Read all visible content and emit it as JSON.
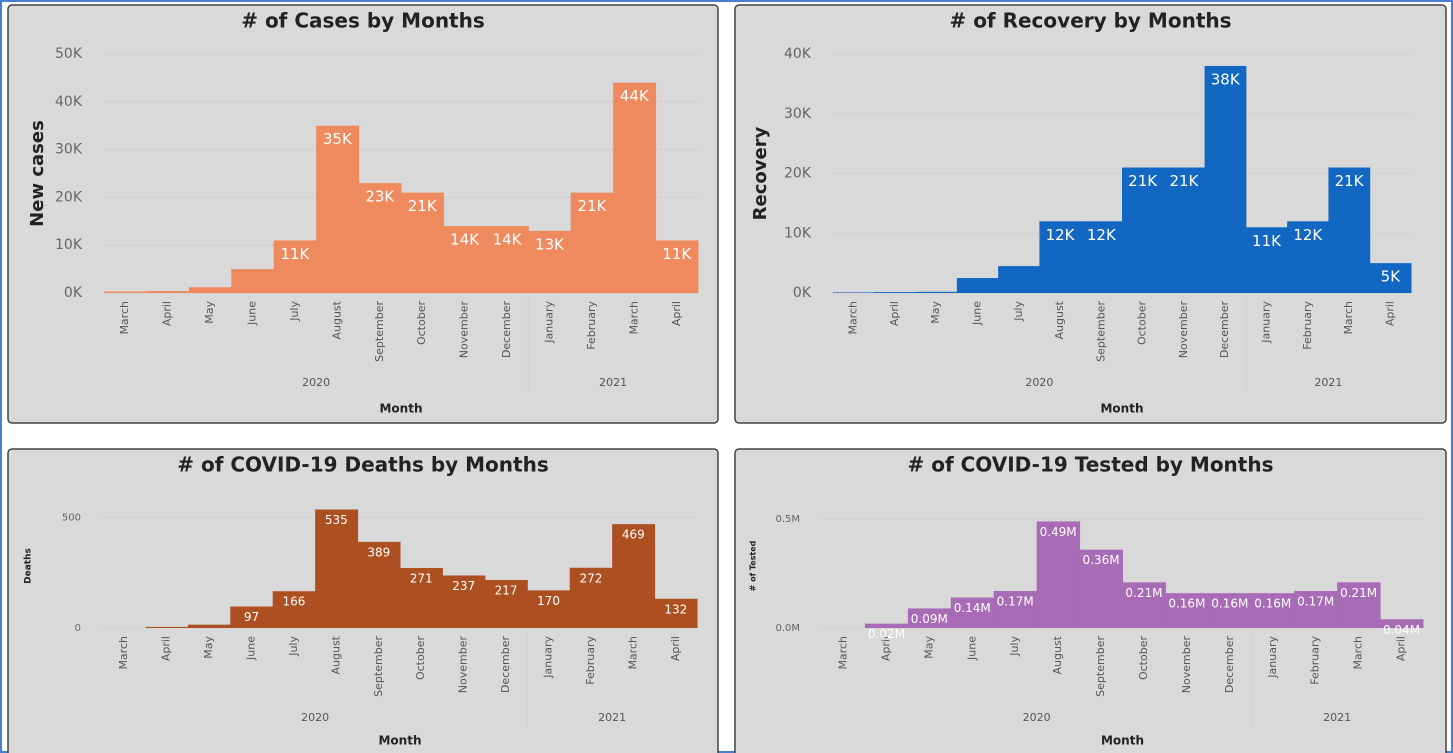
{
  "chart_data": [
    {
      "type": "bar",
      "title": "# of Cases by Months",
      "x_label": "Month",
      "y_label": "New cases",
      "color": "#ee8a5d",
      "grid": true,
      "categories": [
        "March",
        "April",
        "May",
        "June",
        "July",
        "August",
        "September",
        "October",
        "November",
        "December",
        "January",
        "February",
        "March",
        "April"
      ],
      "x_groups": [
        {
          "label": "2020",
          "count": 10
        },
        {
          "label": "2021",
          "count": 4
        }
      ],
      "values": [
        300,
        400,
        1200,
        5000,
        11000,
        35000,
        23000,
        21000,
        14000,
        14000,
        13000,
        21000,
        44000,
        11000
      ],
      "value_labels": [
        null,
        null,
        null,
        null,
        "11K",
        "35K",
        "23K",
        "21K",
        "14K",
        "14K",
        "13K",
        "21K",
        "44K",
        "11K"
      ],
      "ylim": [
        0,
        50000
      ],
      "yticks": [
        {
          "value": 0,
          "label": "0K"
        },
        {
          "value": 10000,
          "label": "10K"
        },
        {
          "value": 20000,
          "label": "20K"
        },
        {
          "value": 30000,
          "label": "30K"
        },
        {
          "value": 40000,
          "label": "40K"
        },
        {
          "value": 50000,
          "label": "50K"
        }
      ]
    },
    {
      "type": "bar",
      "title": "# of Recovery by Months",
      "x_label": "Month",
      "y_label": "Recovery",
      "color": "#1167c2",
      "grid": true,
      "categories": [
        "March",
        "April",
        "May",
        "June",
        "July",
        "August",
        "September",
        "October",
        "November",
        "December",
        "January",
        "February",
        "March",
        "April"
      ],
      "x_groups": [
        {
          "label": "2020",
          "count": 10
        },
        {
          "label": "2021",
          "count": 4
        }
      ],
      "values": [
        100,
        150,
        200,
        2500,
        4500,
        12000,
        12000,
        21000,
        21000,
        38000,
        11000,
        12000,
        21000,
        5000
      ],
      "value_labels": [
        null,
        null,
        null,
        null,
        null,
        "12K",
        "12K",
        "21K",
        "21K",
        "38K",
        "11K",
        "12K",
        "21K",
        "5K"
      ],
      "ylim": [
        0,
        40000
      ],
      "yticks": [
        {
          "value": 0,
          "label": "0K"
        },
        {
          "value": 10000,
          "label": "10K"
        },
        {
          "value": 20000,
          "label": "20K"
        },
        {
          "value": 30000,
          "label": "30K"
        },
        {
          "value": 40000,
          "label": "40K"
        }
      ]
    },
    {
      "type": "bar",
      "title": "# of COVID-19 Deaths by Months",
      "x_label": "Month",
      "y_label": "Deaths",
      "color": "#ac4f21",
      "grid": true,
      "categories": [
        "March",
        "April",
        "May",
        "June",
        "July",
        "August",
        "September",
        "October",
        "November",
        "December",
        "January",
        "February",
        "March",
        "April"
      ],
      "x_groups": [
        {
          "label": "2020",
          "count": 10
        },
        {
          "label": "2021",
          "count": 4
        }
      ],
      "values": [
        0,
        5,
        15,
        97,
        166,
        535,
        389,
        271,
        237,
        217,
        170,
        272,
        469,
        132
      ],
      "value_labels": [
        null,
        null,
        null,
        "97",
        "166",
        "535",
        "389",
        "271",
        "237",
        "217",
        "170",
        "272",
        "469",
        "132"
      ],
      "ylim": [
        0,
        560
      ],
      "yticks": [
        0,
        500
      ]
    },
    {
      "type": "bar",
      "title": "# of COVID-19 Tested by Months",
      "x_label": "Month",
      "y_label": "# of Tested",
      "color": "#a86bb5",
      "grid": true,
      "categories": [
        "March",
        "April",
        "May",
        "June",
        "July",
        "August",
        "September",
        "October",
        "November",
        "December",
        "January",
        "February",
        "March",
        "April"
      ],
      "x_groups": [
        {
          "label": "2020",
          "count": 10
        },
        {
          "label": "2021",
          "count": 4
        }
      ],
      "values": [
        0,
        20000,
        90000,
        140000,
        170000,
        490000,
        360000,
        210000,
        160000,
        160000,
        160000,
        170000,
        210000,
        40000
      ],
      "value_labels": [
        null,
        "0.02M",
        "0.09M",
        "0.14M",
        "0.17M",
        "0.49M",
        "0.36M",
        "0.21M",
        "0.16M",
        "0.16M",
        "0.16M",
        "0.17M",
        "0.21M",
        "0.04M"
      ],
      "ylim": [
        0,
        570000
      ],
      "yticks": [
        {
          "value": 0,
          "label": "0.0M"
        },
        {
          "value": 500000,
          "label": "0.5M"
        }
      ]
    }
  ]
}
